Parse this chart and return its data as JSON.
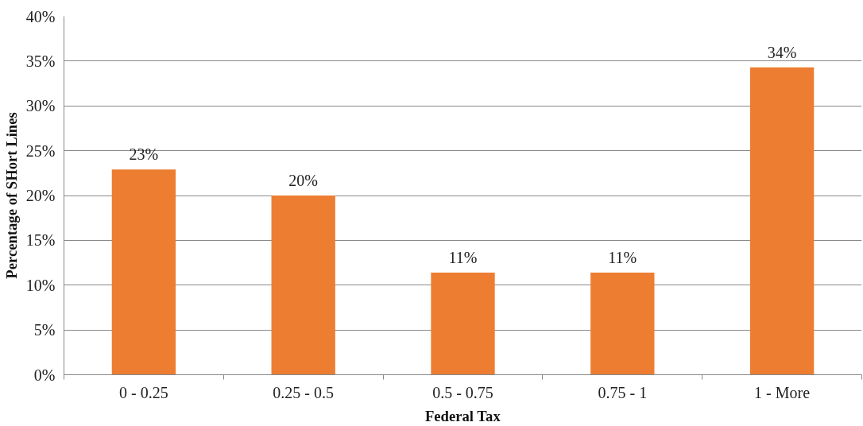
{
  "chart_data": {
    "type": "bar",
    "xlabel": "Federal Tax",
    "ylabel": "Percentage of SHort Lines",
    "categories": [
      "0 - 0.25",
      "0.25 - 0.5",
      "0.5 - 0.75",
      "0.75 - 1",
      "1 - More"
    ],
    "values": [
      22.9,
      20,
      11.4,
      11.4,
      34.3
    ],
    "value_labels": [
      "23%",
      "20%",
      "11%",
      "11%",
      "34%"
    ],
    "color": "#ed7d31",
    "ylim": [
      0,
      40
    ],
    "yticks": [
      {
        "value": 0,
        "label": "0%"
      },
      {
        "value": 5,
        "label": "5%"
      },
      {
        "value": 10,
        "label": "10%"
      },
      {
        "value": 15,
        "label": "15%"
      },
      {
        "value": 20,
        "label": "20%"
      },
      {
        "value": 25,
        "label": "25%"
      },
      {
        "value": 30,
        "label": "30%"
      },
      {
        "value": 35,
        "label": "35%"
      },
      {
        "value": 40,
        "label": "40%"
      }
    ],
    "grid": "y"
  }
}
